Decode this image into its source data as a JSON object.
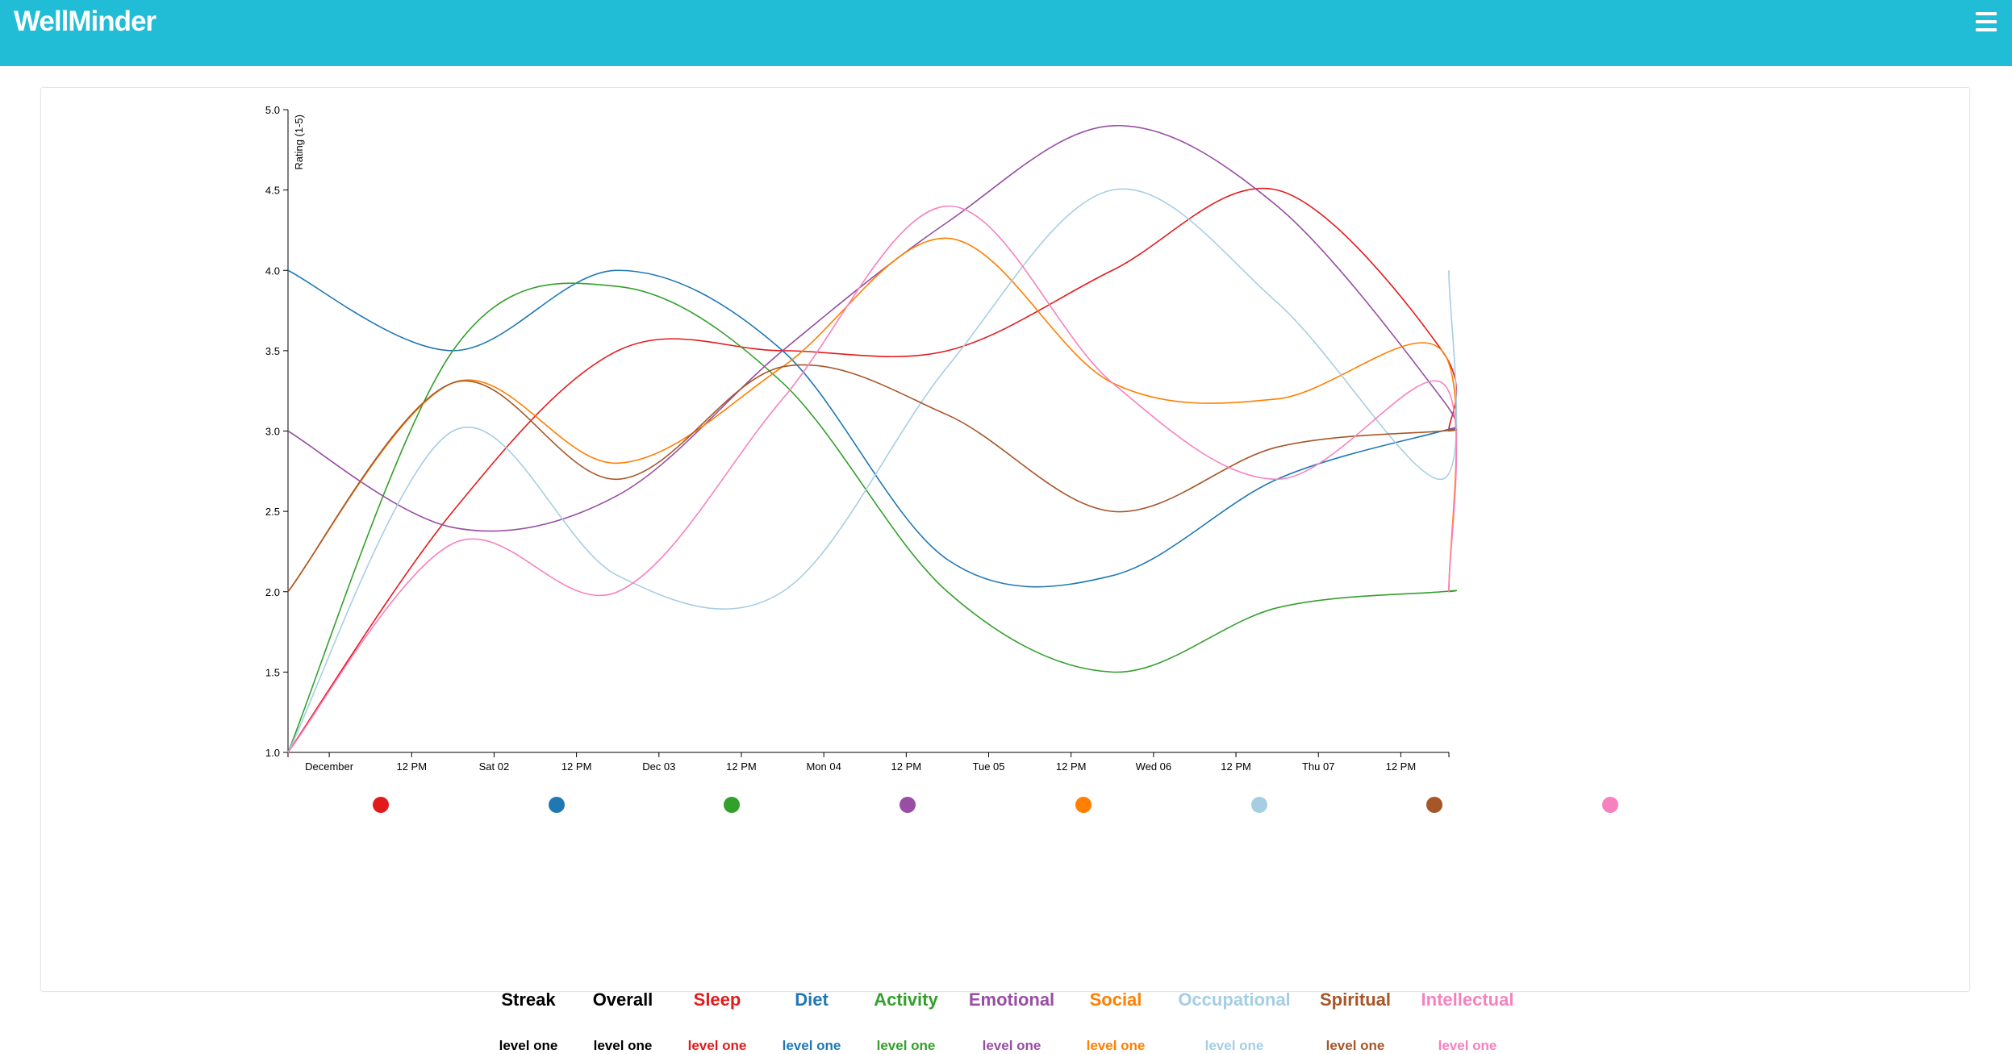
{
  "header": {
    "brand": "WellMinder",
    "menu_icon": "hamburger-menu-icon",
    "background": "#21bcd5"
  },
  "chart_data": {
    "type": "line",
    "curve": "smooth",
    "ylabel": "Rating (1-5)",
    "ylim": [
      1,
      5
    ],
    "yticks": [
      "1.0",
      "1.5",
      "2.0",
      "2.5",
      "3.0",
      "3.5",
      "4.0",
      "4.5",
      "5.0"
    ],
    "xlim": [
      "Nov 30 18:00",
      "Dec 7 19:00"
    ],
    "xticks": [
      "December",
      "12 PM",
      "Sat 02",
      "12 PM",
      "Dec 03",
      "12 PM",
      "Mon 04",
      "12 PM",
      "Tue 05",
      "12 PM",
      "Wed 06",
      "12 PM",
      "Thu 07",
      "12 PM"
    ],
    "x": [
      "Nov 30 18:00",
      "Dec 1 18:00",
      "Dec 2 18:00",
      "Dec 3 18:00",
      "Dec 4 18:00",
      "Dec 5 18:00",
      "Dec 6 18:00",
      "Dec 7 18:00",
      "Dec 7 19:00"
    ],
    "grid": false,
    "series": [
      {
        "key": "sleep",
        "color": "#e31a1c",
        "values": [
          1,
          2.5,
          3.5,
          3.5,
          3.5,
          4,
          4.5,
          3.5,
          3
        ]
      },
      {
        "key": "diet",
        "color": "#1f78b4",
        "values": [
          4,
          3.5,
          4,
          3.5,
          2.2,
          2.1,
          2.7,
          3,
          3
        ]
      },
      {
        "key": "activity",
        "color": "#33a02c",
        "values": [
          1,
          3.5,
          3.9,
          3.3,
          2,
          1.5,
          1.9,
          2,
          2
        ]
      },
      {
        "key": "emotional",
        "color": "#984ea3",
        "values": [
          3,
          2.4,
          2.6,
          3.5,
          4.3,
          4.9,
          4.4,
          3.2,
          3
        ]
      },
      {
        "key": "social",
        "color": "#ff7f00",
        "values": [
          2,
          3.3,
          2.8,
          3.4,
          4.2,
          3.3,
          3.2,
          3.5,
          2
        ]
      },
      {
        "key": "occupational",
        "color": "#a6cee3",
        "values": [
          1,
          3,
          2.1,
          2,
          3.4,
          4.5,
          3.8,
          2.7,
          4
        ]
      },
      {
        "key": "spiritual",
        "color": "#a65628",
        "values": [
          2,
          3.3,
          2.7,
          3.4,
          3.1,
          2.5,
          2.9,
          3,
          3
        ]
      },
      {
        "key": "intellectual",
        "color": "#f781bf",
        "values": [
          1,
          2.3,
          2,
          3.2,
          4.4,
          3.3,
          2.7,
          3.3,
          2
        ]
      }
    ]
  },
  "legend_dots": [
    {
      "key": "sleep",
      "color": "#e31a1c"
    },
    {
      "key": "diet",
      "color": "#1f78b4"
    },
    {
      "key": "activity",
      "color": "#33a02c"
    },
    {
      "key": "emotional",
      "color": "#984ea3"
    },
    {
      "key": "social",
      "color": "#ff7f00"
    },
    {
      "key": "occupational",
      "color": "#a6cee3"
    },
    {
      "key": "spiritual",
      "color": "#a65628"
    },
    {
      "key": "intellectual",
      "color": "#f781bf"
    }
  ],
  "stats": [
    {
      "title": "Streak",
      "level": "level one",
      "color": "#000000"
    },
    {
      "title": "Overall",
      "level": "level one",
      "color": "#000000"
    },
    {
      "title": "Sleep",
      "level": "level one",
      "color": "#e31a1c"
    },
    {
      "title": "Diet",
      "level": "level one",
      "color": "#1f78b4"
    },
    {
      "title": "Activity",
      "level": "level one",
      "color": "#33a02c"
    },
    {
      "title": "Emotional",
      "level": "level one",
      "color": "#984ea3"
    },
    {
      "title": "Social",
      "level": "level one",
      "color": "#ff7f00"
    },
    {
      "title": "Occupational",
      "level": "level one",
      "color": "#a6cee3"
    },
    {
      "title": "Spiritual",
      "level": "level one",
      "color": "#a65628"
    },
    {
      "title": "Intellectual",
      "level": "level one",
      "color": "#f781bf"
    }
  ]
}
